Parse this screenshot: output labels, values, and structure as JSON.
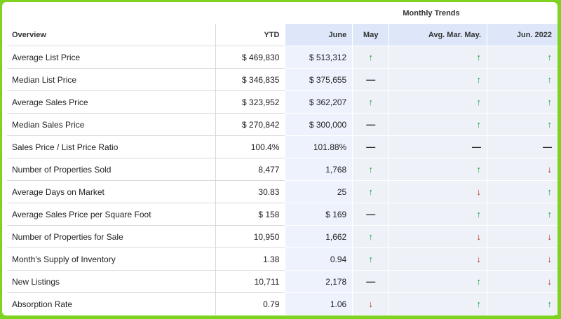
{
  "header": {
    "monthly_trends": "Monthly Trends",
    "columns": [
      "Overview",
      "YTD",
      "June",
      "May",
      "Avg. Mar. May.",
      "Jun. 2022"
    ]
  },
  "rows": [
    {
      "label": "Average List Price",
      "ytd": "$ 469,830",
      "june": "$ 513,312",
      "may": "up",
      "avg": "up",
      "jun2022": "up"
    },
    {
      "label": "Median List Price",
      "ytd": "$ 346,835",
      "june": "$ 375,655",
      "may": "flat",
      "avg": "up",
      "jun2022": "up"
    },
    {
      "label": "Average Sales Price",
      "ytd": "$ 323,952",
      "june": "$ 362,207",
      "may": "up",
      "avg": "up",
      "jun2022": "up"
    },
    {
      "label": "Median Sales Price",
      "ytd": "$ 270,842",
      "june": "$ 300,000",
      "may": "flat",
      "avg": "up",
      "jun2022": "up"
    },
    {
      "label": "Sales Price / List Price Ratio",
      "ytd": "100.4%",
      "june": "101.88%",
      "may": "flat",
      "avg": "flat",
      "jun2022": "flat"
    },
    {
      "label": "Number of Properties Sold",
      "ytd": "8,477",
      "june": "1,768",
      "may": "up",
      "avg": "up",
      "jun2022": "down"
    },
    {
      "label": "Average Days on Market",
      "ytd": "30.83",
      "june": "25",
      "may": "up",
      "avg": "down",
      "jun2022": "up"
    },
    {
      "label": "Average Sales Price per Square Foot",
      "ytd": "$ 158",
      "june": "$ 169",
      "may": "flat",
      "avg": "up",
      "jun2022": "up"
    },
    {
      "label": "Number of Properties for Sale",
      "ytd": "10,950",
      "june": "1,662",
      "may": "up",
      "avg": "down",
      "jun2022": "down"
    },
    {
      "label": "Month's Supply of Inventory",
      "ytd": "1.38",
      "june": "0.94",
      "may": "up",
      "avg": "down",
      "jun2022": "down"
    },
    {
      "label": "New Listings",
      "ytd": "10,711",
      "june": "2,178",
      "may": "flat",
      "avg": "up",
      "jun2022": "down"
    },
    {
      "label": "Absorption Rate",
      "ytd": "0.79",
      "june": "1.06",
      "may": "down",
      "avg": "up",
      "jun2022": "up"
    }
  ],
  "colors": {
    "up": "#1a9a45",
    "down": "#b3261e",
    "flat": "#222222",
    "accent": "#7ed321"
  },
  "icons": {
    "up": "arrow-up-icon",
    "down": "arrow-down-icon",
    "flat": "dash-icon"
  }
}
